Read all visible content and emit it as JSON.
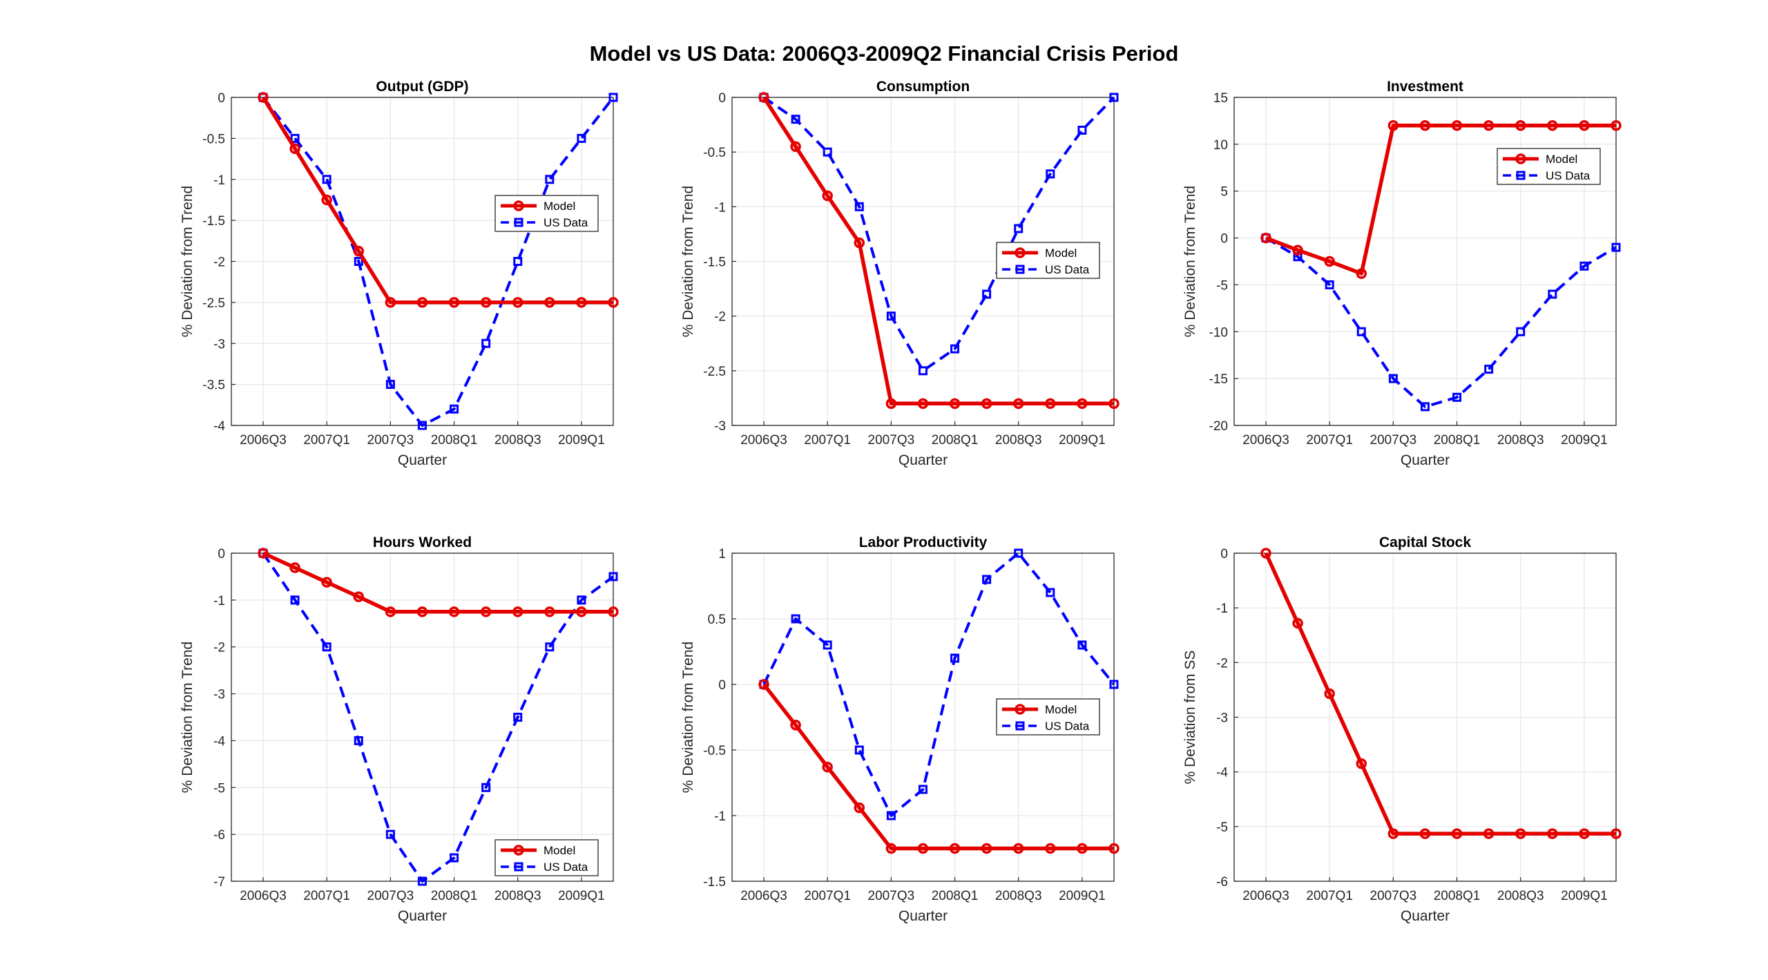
{
  "figure": {
    "title": "Model vs US Data: 2006Q3-2009Q2 Financial Crisis Period"
  },
  "colors": {
    "model": "#e50000",
    "data": "#0000ff",
    "grid": "#e6e6e6",
    "axis": "#262626"
  },
  "chart_data": [
    {
      "type": "line",
      "title": "Output (GDP)",
      "xlabel": "Quarter",
      "ylabel": "% Deviation from Trend",
      "ylim": [
        -4,
        0
      ],
      "yticks": [
        "0",
        "-0.5",
        "-1",
        "-1.5",
        "-2",
        "-2.5",
        "-3",
        "-3.5",
        "-4"
      ],
      "x": [
        "2006Q3",
        "2006Q4",
        "2007Q1",
        "2007Q2",
        "2007Q3",
        "2007Q4",
        "2008Q1",
        "2008Q2",
        "2008Q3",
        "2008Q4",
        "2009Q1",
        "2009Q2"
      ],
      "xtick_labels": [
        "2006Q3",
        "2007Q1",
        "2007Q3",
        "2008Q1",
        "2008Q3",
        "2009Q1"
      ],
      "grid": true,
      "legend": {
        "position": "mid-right",
        "entries": [
          "Model",
          "US Data"
        ]
      },
      "series": [
        {
          "name": "Model",
          "style": "solid-circle",
          "values": [
            0,
            -0.625,
            -1.25,
            -1.875,
            -2.5,
            -2.5,
            -2.5,
            -2.5,
            -2.5,
            -2.5,
            -2.5,
            -2.5
          ]
        },
        {
          "name": "US Data",
          "style": "dashed-square",
          "values": [
            0,
            -0.5,
            -1.0,
            -2.0,
            -3.5,
            -4.0,
            -3.8,
            -3.0,
            -2.0,
            -1.0,
            -0.5,
            0
          ]
        }
      ]
    },
    {
      "type": "line",
      "title": "Consumption",
      "xlabel": "Quarter",
      "ylabel": "% Deviation from Trend",
      "ylim": [
        -3,
        0
      ],
      "yticks": [
        "0",
        "-0.5",
        "-1",
        "-1.5",
        "-2",
        "-2.5",
        "-3"
      ],
      "x": [
        "2006Q3",
        "2006Q4",
        "2007Q1",
        "2007Q2",
        "2007Q3",
        "2007Q4",
        "2008Q1",
        "2008Q2",
        "2008Q3",
        "2008Q4",
        "2009Q1",
        "2009Q2"
      ],
      "xtick_labels": [
        "2006Q3",
        "2007Q1",
        "2007Q3",
        "2008Q1",
        "2008Q3",
        "2009Q1"
      ],
      "grid": true,
      "legend": {
        "position": "mid-right",
        "entries": [
          "Model",
          "US Data"
        ]
      },
      "series": [
        {
          "name": "Model",
          "style": "solid-circle",
          "values": [
            0,
            -0.45,
            -0.9,
            -1.33,
            -2.8,
            -2.8,
            -2.8,
            -2.8,
            -2.8,
            -2.8,
            -2.8,
            -2.8
          ]
        },
        {
          "name": "US Data",
          "style": "dashed-square",
          "values": [
            0,
            -0.2,
            -0.5,
            -1.0,
            -2.0,
            -2.5,
            -2.3,
            -1.8,
            -1.2,
            -0.7,
            -0.3,
            0
          ]
        }
      ]
    },
    {
      "type": "line",
      "title": "Investment",
      "xlabel": "Quarter",
      "ylabel": "% Deviation from Trend",
      "ylim": [
        -20,
        15
      ],
      "yticks": [
        "15",
        "10",
        "5",
        "0",
        "-5",
        "-10",
        "-15",
        "-20"
      ],
      "x": [
        "2006Q3",
        "2006Q4",
        "2007Q1",
        "2007Q2",
        "2007Q3",
        "2007Q4",
        "2008Q1",
        "2008Q2",
        "2008Q3",
        "2008Q4",
        "2009Q1",
        "2009Q2"
      ],
      "xtick_labels": [
        "2006Q3",
        "2007Q1",
        "2007Q3",
        "2008Q1",
        "2008Q3",
        "2009Q1"
      ],
      "grid": true,
      "legend": {
        "position": "top-right",
        "entries": [
          "Model",
          "US Data"
        ]
      },
      "series": [
        {
          "name": "Model",
          "style": "solid-circle",
          "values": [
            0,
            -1.3,
            -2.5,
            -3.8,
            12,
            12,
            12,
            12,
            12,
            12,
            12,
            12
          ]
        },
        {
          "name": "US Data",
          "style": "dashed-square",
          "values": [
            0,
            -2,
            -5,
            -10,
            -15,
            -18,
            -17,
            -14,
            -10,
            -6,
            -3,
            -1
          ]
        }
      ]
    },
    {
      "type": "line",
      "title": "Hours Worked",
      "xlabel": "Quarter",
      "ylabel": "% Deviation from Trend",
      "ylim": [
        -7,
        0
      ],
      "yticks": [
        "0",
        "-1",
        "-2",
        "-3",
        "-4",
        "-5",
        "-6",
        "-7"
      ],
      "x": [
        "2006Q3",
        "2006Q4",
        "2007Q1",
        "2007Q2",
        "2007Q3",
        "2007Q4",
        "2008Q1",
        "2008Q2",
        "2008Q3",
        "2008Q4",
        "2009Q1",
        "2009Q2"
      ],
      "xtick_labels": [
        "2006Q3",
        "2007Q1",
        "2007Q3",
        "2008Q1",
        "2008Q3",
        "2009Q1"
      ],
      "grid": true,
      "legend": {
        "position": "bottom-right",
        "entries": [
          "Model",
          "US Data"
        ]
      },
      "series": [
        {
          "name": "Model",
          "style": "solid-circle",
          "values": [
            0,
            -0.31,
            -0.62,
            -0.93,
            -1.25,
            -1.25,
            -1.25,
            -1.25,
            -1.25,
            -1.25,
            -1.25,
            -1.25
          ]
        },
        {
          "name": "US Data",
          "style": "dashed-square",
          "values": [
            0,
            -1,
            -2,
            -4,
            -6,
            -7,
            -6.5,
            -5,
            -3.5,
            -2,
            -1,
            -0.5
          ]
        }
      ]
    },
    {
      "type": "line",
      "title": "Labor Productivity",
      "xlabel": "Quarter",
      "ylabel": "% Deviation from Trend",
      "ylim": [
        -1.5,
        1
      ],
      "yticks": [
        "1",
        "0.5",
        "0",
        "-0.5",
        "-1",
        "-1.5"
      ],
      "x": [
        "2006Q3",
        "2006Q4",
        "2007Q1",
        "2007Q2",
        "2007Q3",
        "2007Q4",
        "2008Q1",
        "2008Q2",
        "2008Q3",
        "2008Q4",
        "2009Q1",
        "2009Q2"
      ],
      "xtick_labels": [
        "2006Q3",
        "2007Q1",
        "2007Q3",
        "2008Q1",
        "2008Q3",
        "2009Q1"
      ],
      "grid": true,
      "legend": {
        "position": "mid-right",
        "entries": [
          "Model",
          "US Data"
        ]
      },
      "series": [
        {
          "name": "Model",
          "style": "solid-circle",
          "values": [
            0,
            -0.31,
            -0.63,
            -0.94,
            -1.25,
            -1.25,
            -1.25,
            -1.25,
            -1.25,
            -1.25,
            -1.25,
            -1.25
          ]
        },
        {
          "name": "US Data",
          "style": "dashed-square",
          "values": [
            0,
            0.5,
            0.3,
            -0.5,
            -1.0,
            -0.8,
            0.2,
            0.8,
            1.0,
            0.7,
            0.3,
            0
          ]
        }
      ]
    },
    {
      "type": "line",
      "title": "Capital Stock",
      "xlabel": "Quarter",
      "ylabel": "% Deviation from SS",
      "ylim": [
        -6,
        0
      ],
      "yticks": [
        "0",
        "-1",
        "-2",
        "-3",
        "-4",
        "-5",
        "-6"
      ],
      "x": [
        "2006Q3",
        "2006Q4",
        "2007Q1",
        "2007Q2",
        "2007Q3",
        "2007Q4",
        "2008Q1",
        "2008Q2",
        "2008Q3",
        "2008Q4",
        "2009Q1",
        "2009Q2"
      ],
      "xtick_labels": [
        "2006Q3",
        "2007Q1",
        "2007Q3",
        "2008Q1",
        "2008Q3",
        "2009Q1"
      ],
      "grid": true,
      "legend": null,
      "series": [
        {
          "name": "Model",
          "style": "solid-circle",
          "values": [
            0,
            -1.28,
            -2.57,
            -3.85,
            -5.13,
            -5.13,
            -5.13,
            -5.13,
            -5.13,
            -5.13,
            -5.13,
            -5.13
          ]
        }
      ]
    }
  ]
}
